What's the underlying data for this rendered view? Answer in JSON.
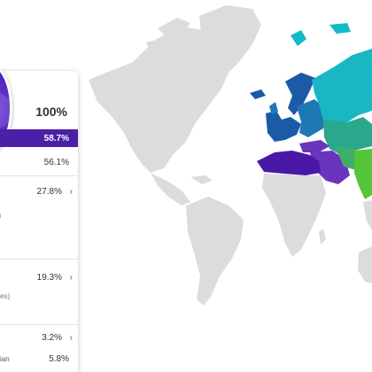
{
  "panel": {
    "total": "100%",
    "rows": [
      {
        "value": "58.7%",
        "selected": true
      },
      {
        "value": "56.1%"
      },
      {
        "value": "27.8%",
        "chevron": "›",
        "fragment": "n"
      },
      {
        "value": "19.3%",
        "chevron": "›",
        "fragment": "ces)"
      },
      {
        "value": "3.2%",
        "chevron": "›"
      },
      {
        "value": "5.8%",
        "fragment": "sian"
      }
    ]
  },
  "colors": {
    "accent": "#4b1fa8",
    "land": "#dcdcdc",
    "region_north_africa": "#4a18a6",
    "region_middle_east": "#6a34bf",
    "region_europe_west": "#1a5aa6",
    "region_europe_east": "#1f78b4",
    "region_russia": "#19b7c4",
    "region_central_asia": "#2aa88e",
    "region_south_asia": "#55c43a",
    "region_greenland_dots": "#11b9c9"
  }
}
